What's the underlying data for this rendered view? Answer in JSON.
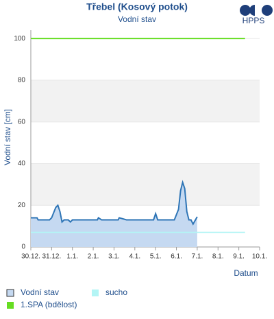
{
  "chart_data": {
    "type": "area-line",
    "title": "Třebel (Kosový potok)",
    "subtitle": "Vodní stav",
    "ylabel": "Vodní stav [cm]",
    "xlabel": "Datum",
    "xlim": [
      0,
      11
    ],
    "xticks": [
      {
        "value": 0,
        "label": "30.12."
      },
      {
        "value": 1,
        "label": "31.12."
      },
      {
        "value": 2,
        "label": "1.1."
      },
      {
        "value": 3,
        "label": "2.1."
      },
      {
        "value": 4,
        "label": "3.1."
      },
      {
        "value": 5,
        "label": "4.1."
      },
      {
        "value": 6,
        "label": "5.1."
      },
      {
        "value": 7,
        "label": "6.1."
      },
      {
        "value": 8,
        "label": "7.1."
      },
      {
        "value": 9,
        "label": "8.1."
      },
      {
        "value": 10,
        "label": "9.1."
      },
      {
        "value": 11,
        "label": "10.1."
      }
    ],
    "ylim": [
      0,
      104
    ],
    "yticks": [
      0,
      20,
      40,
      60,
      80,
      100
    ],
    "series": [
      {
        "name": "Vodní stav",
        "color": "#2e75b6",
        "fill": "#c5d9f1",
        "x": [
          0,
          0.3,
          0.35,
          0.9,
          1.0,
          1.2,
          1.3,
          1.4,
          1.5,
          1.6,
          1.8,
          1.9,
          2.0,
          3.2,
          3.25,
          3.4,
          4.2,
          4.25,
          4.6,
          5.9,
          6.0,
          6.1,
          6.9,
          7.1,
          7.2,
          7.3,
          7.4,
          7.5,
          7.6,
          7.7,
          7.8,
          8.0
        ],
        "values": [
          14,
          14,
          13,
          13,
          14,
          19,
          20,
          17,
          12,
          13,
          13,
          12,
          13,
          13,
          14,
          13,
          13,
          14,
          13,
          13,
          16,
          13,
          13,
          18,
          27,
          31,
          28,
          17,
          13,
          13,
          11,
          14.5
        ]
      },
      {
        "name": "sucho",
        "color": "#b3f5f5",
        "x": [
          0,
          10.3
        ],
        "values": [
          7,
          7
        ]
      },
      {
        "name": "1.SPA (bdělost)",
        "color": "#66dd22",
        "x": [
          0,
          10.3
        ],
        "values": [
          100,
          100
        ]
      }
    ]
  },
  "logo_text": "HPPS"
}
